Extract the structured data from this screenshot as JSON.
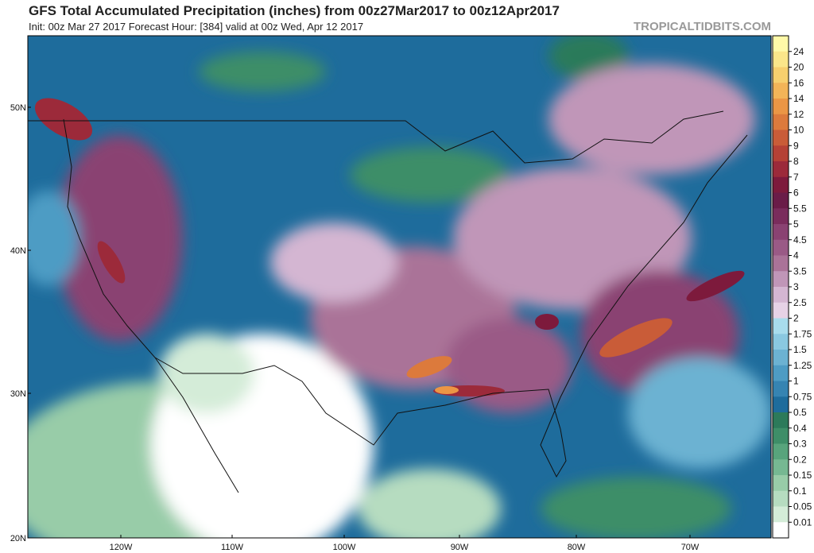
{
  "header": {
    "title": "GFS Total Accumulated Precipitation (inches) from 00z27Mar2017 to 00z12Apr2017",
    "subtitle": "Init: 00z Mar 27 2017   Forecast Hour: [384]   valid at 00z Wed, Apr 12 2017",
    "watermark": "TROPICALTIDBITS.COM"
  },
  "map": {
    "lat_labels": [
      "50N",
      "40N",
      "30N",
      "20N"
    ],
    "lon_labels": [
      "120W",
      "110W",
      "100W",
      "90W",
      "80W",
      "70W"
    ]
  },
  "colorbar": {
    "levels": [
      "24",
      "20",
      "16",
      "14",
      "12",
      "10",
      "9",
      "8",
      "7",
      "6",
      "5.5",
      "5",
      "4.5",
      "4",
      "3.5",
      "3",
      "2.5",
      "2",
      "1.75",
      "1.5",
      "1.25",
      "1",
      "0.75",
      "0.5",
      "0.4",
      "0.3",
      "0.2",
      "0.15",
      "0.1",
      "0.05",
      "0.01"
    ],
    "colors": [
      "#fff9a8",
      "#fbe68a",
      "#f7cf6e",
      "#f3b458",
      "#eb9645",
      "#dc7a3c",
      "#c95c38",
      "#b54136",
      "#9c2a3a",
      "#7d1a3c",
      "#6a1c48",
      "#7a2c5c",
      "#8a4272",
      "#9a5a86",
      "#aa7398",
      "#c096b8",
      "#d4b6d2",
      "#e6d2e6",
      "#a8dcec",
      "#8ac8e0",
      "#6cb2d2",
      "#4e9cc4",
      "#3684b2",
      "#1e6c9c",
      "#2c7a5a",
      "#3e8e68",
      "#58a47c",
      "#76b892",
      "#98cca8",
      "#b6dcc0",
      "#d4ecd8",
      "#ffffff"
    ]
  }
}
